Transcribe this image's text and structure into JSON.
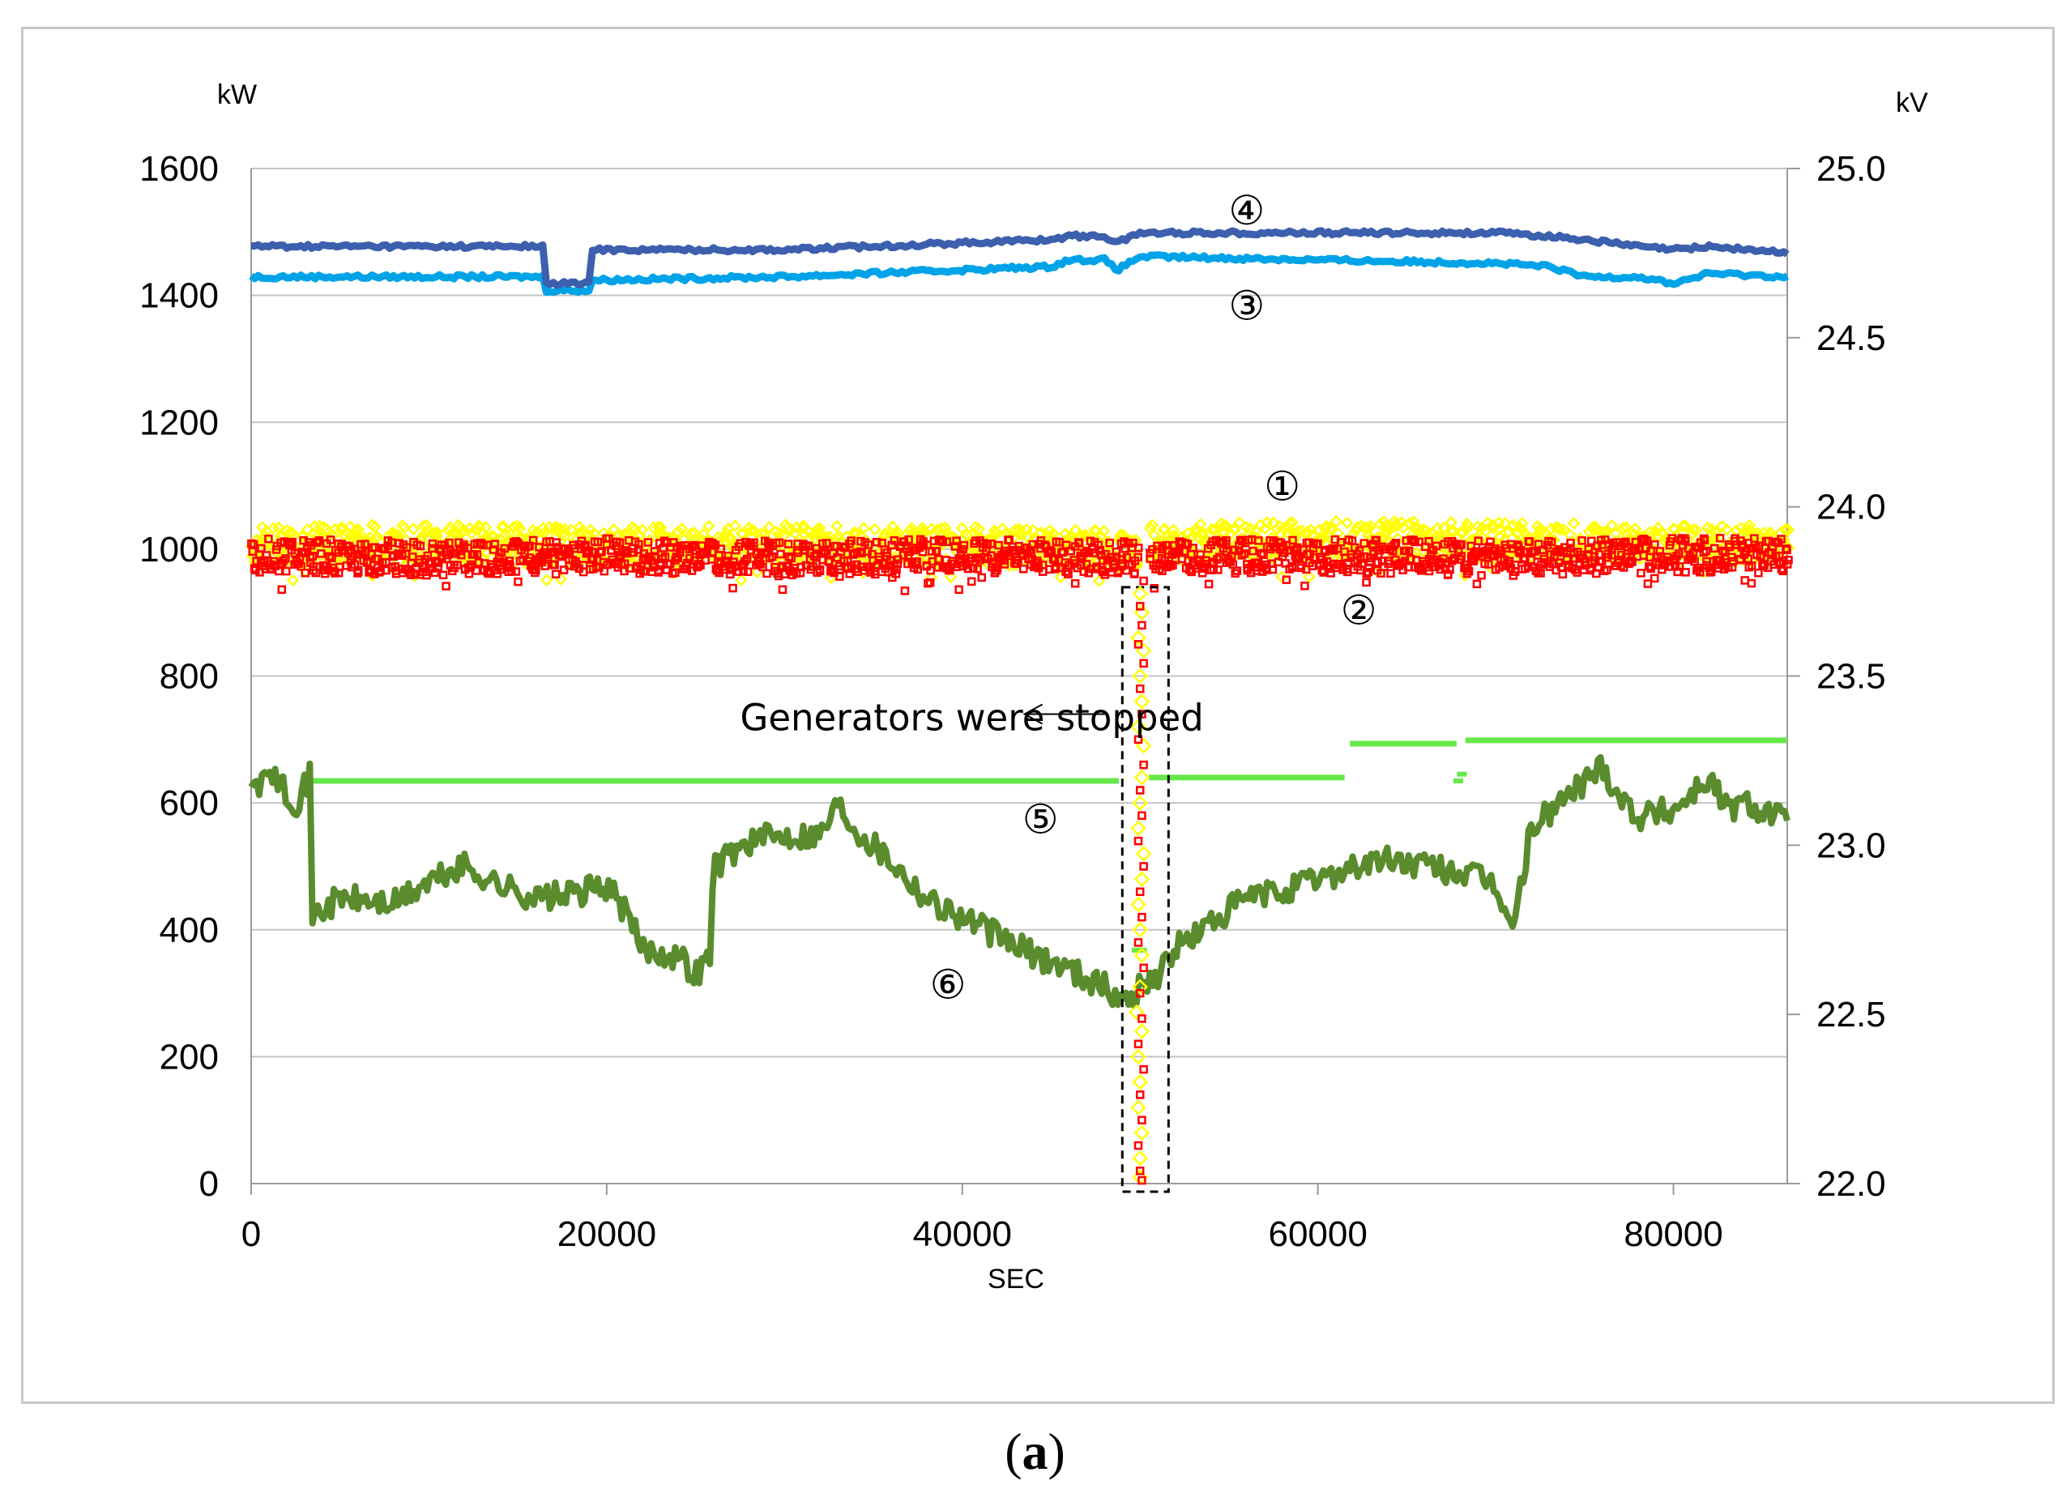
{
  "chart_data": {
    "type": "scatter",
    "title": "",
    "xlabel": "SEC",
    "ylabel_left": "kW",
    "ylabel_right": "kV",
    "xlim": [
      0,
      86400
    ],
    "ylim_left": [
      0,
      1600
    ],
    "ylim_right": [
      22.0,
      25.0
    ],
    "x_ticks": [
      0,
      20000,
      40000,
      60000,
      80000
    ],
    "y_ticks_left": [
      0,
      200,
      400,
      600,
      800,
      1000,
      1200,
      1400,
      1600
    ],
    "y_ticks_right": [
      "22.0",
      "22.5",
      "23.0",
      "23.5",
      "24.0",
      "24.5",
      "25.0"
    ],
    "grid": "horizontal",
    "series": [
      {
        "id": "1",
        "name": "Series 1 (kW, yellow diamonds)",
        "axis": "left",
        "color": "#ffff00",
        "marker": "diamond",
        "points": [
          [
            0,
            1005
          ],
          [
            10000,
            1010
          ],
          [
            20000,
            1005
          ],
          [
            30000,
            1008
          ],
          [
            40000,
            1005
          ],
          [
            49800,
            1000
          ],
          [
            50600,
            1010
          ],
          [
            60000,
            1015
          ],
          [
            70000,
            1012
          ],
          [
            80000,
            1010
          ],
          [
            86400,
            1008
          ]
        ]
      },
      {
        "id": "2",
        "name": "Series 2 (kW, red squares)",
        "axis": "left",
        "color": "#ff0000",
        "marker": "square",
        "points": [
          [
            0,
            990
          ],
          [
            10000,
            985
          ],
          [
            20000,
            990
          ],
          [
            30000,
            985
          ],
          [
            40000,
            990
          ],
          [
            49800,
            985
          ],
          [
            50600,
            985
          ],
          [
            60000,
            990
          ],
          [
            70000,
            985
          ],
          [
            80000,
            990
          ],
          [
            86400,
            990
          ]
        ]
      },
      {
        "id": "3",
        "name": "Series 3 (kV, light blue)",
        "axis": "right",
        "color": "#00a3e8",
        "points": [
          [
            0,
            24.68
          ],
          [
            16400,
            24.68
          ],
          [
            16500,
            24.64
          ],
          [
            19000,
            24.64
          ],
          [
            19100,
            24.67
          ],
          [
            30000,
            24.68
          ],
          [
            40000,
            24.7
          ],
          [
            45000,
            24.71
          ],
          [
            46000,
            24.73
          ],
          [
            48000,
            24.73
          ],
          [
            48700,
            24.7
          ],
          [
            50000,
            24.74
          ],
          [
            60000,
            24.73
          ],
          [
            70000,
            24.72
          ],
          [
            73000,
            24.71
          ],
          [
            75000,
            24.68
          ],
          [
            78000,
            24.68
          ],
          [
            80000,
            24.66
          ],
          [
            82000,
            24.69
          ],
          [
            86400,
            24.68
          ]
        ]
      },
      {
        "id": "4",
        "name": "Series 4 (kV, dark blue)",
        "axis": "right",
        "color": "#3c5fae",
        "points": [
          [
            0,
            24.77
          ],
          [
            16400,
            24.77
          ],
          [
            16500,
            24.66
          ],
          [
            19000,
            24.66
          ],
          [
            19100,
            24.76
          ],
          [
            30000,
            24.76
          ],
          [
            40000,
            24.78
          ],
          [
            45000,
            24.79
          ],
          [
            46000,
            24.8
          ],
          [
            48000,
            24.8
          ],
          [
            48700,
            24.78
          ],
          [
            50000,
            24.81
          ],
          [
            60000,
            24.81
          ],
          [
            70000,
            24.81
          ],
          [
            73000,
            24.8
          ],
          [
            75000,
            24.79
          ],
          [
            78000,
            24.77
          ],
          [
            80000,
            24.76
          ],
          [
            82000,
            24.77
          ],
          [
            86400,
            24.75
          ]
        ]
      },
      {
        "id": "5",
        "name": "Series 5 (kV, bright green)",
        "axis": "right",
        "color": "#66e84a",
        "segments": [
          [
            [
              3300,
              23.19
            ],
            [
              48800,
              23.19
            ]
          ],
          [
            [
              50500,
              23.2
            ],
            [
              61500,
              23.2
            ]
          ],
          [
            [
              61800,
              23.3
            ],
            [
              67800,
              23.3
            ]
          ],
          [
            [
              68300,
              23.31
            ],
            [
              86400,
              23.31
            ]
          ]
        ],
        "scatter": [
          [
            49800,
            22.69
          ],
          [
            50100,
            22.69
          ],
          [
            67900,
            23.19
          ],
          [
            68100,
            23.21
          ]
        ]
      },
      {
        "id": "6",
        "name": "Series 6 (kW, dark green)",
        "axis": "left",
        "color": "#5a8c2e",
        "points": [
          [
            0,
            630
          ],
          [
            1500,
            640
          ],
          [
            2500,
            600
          ],
          [
            3300,
            640
          ],
          [
            3400,
            420
          ],
          [
            5000,
            450
          ],
          [
            8000,
            440
          ],
          [
            10000,
            475
          ],
          [
            12000,
            500
          ],
          [
            14000,
            470
          ],
          [
            16000,
            450
          ],
          [
            18000,
            455
          ],
          [
            20000,
            470
          ],
          [
            21000,
            430
          ],
          [
            22000,
            370
          ],
          [
            24000,
            360
          ],
          [
            25000,
            330
          ],
          [
            25800,
            360
          ],
          [
            26000,
            500
          ],
          [
            28000,
            540
          ],
          [
            30000,
            550
          ],
          [
            32000,
            550
          ],
          [
            33000,
            600
          ],
          [
            34000,
            560
          ],
          [
            36000,
            510
          ],
          [
            38000,
            450
          ],
          [
            40000,
            420
          ],
          [
            42000,
            390
          ],
          [
            44000,
            360
          ],
          [
            46000,
            340
          ],
          [
            48000,
            310
          ],
          [
            49000,
            285
          ],
          [
            50000,
            310
          ],
          [
            51000,
            330
          ],
          [
            52000,
            370
          ],
          [
            54000,
            410
          ],
          [
            56000,
            450
          ],
          [
            58000,
            460
          ],
          [
            60000,
            480
          ],
          [
            62000,
            500
          ],
          [
            64000,
            510
          ],
          [
            66000,
            500
          ],
          [
            68000,
            490
          ],
          [
            70000,
            470
          ],
          [
            71000,
            400
          ],
          [
            72000,
            560
          ],
          [
            74000,
            610
          ],
          [
            76000,
            660
          ],
          [
            77000,
            610
          ],
          [
            78000,
            580
          ],
          [
            80000,
            590
          ],
          [
            82000,
            640
          ],
          [
            83000,
            590
          ],
          [
            84000,
            600
          ],
          [
            86000,
            580
          ],
          [
            86400,
            560
          ]
        ]
      }
    ],
    "event_box": {
      "x_start": 49000,
      "x_end": 51600,
      "y_bottom": 0,
      "y_top": 940
    },
    "event_points": {
      "yellow": [
        [
          50000,
          930
        ],
        [
          50100,
          900
        ],
        [
          49900,
          860
        ],
        [
          50200,
          840
        ],
        [
          50000,
          800
        ],
        [
          50100,
          760
        ],
        [
          49900,
          720
        ],
        [
          50200,
          690
        ],
        [
          50100,
          640
        ],
        [
          50000,
          600
        ],
        [
          49900,
          560
        ],
        [
          50200,
          520
        ],
        [
          50100,
          480
        ],
        [
          49900,
          440
        ],
        [
          50000,
          400
        ],
        [
          50100,
          360
        ],
        [
          50000,
          310
        ],
        [
          49800,
          270
        ],
        [
          50100,
          240
        ],
        [
          49900,
          200
        ],
        [
          50000,
          160
        ],
        [
          49900,
          120
        ],
        [
          50100,
          80
        ],
        [
          50000,
          40
        ],
        [
          50000,
          10
        ]
      ],
      "red": [
        [
          50200,
          950
        ],
        [
          50000,
          910
        ],
        [
          50100,
          880
        ],
        [
          49900,
          850
        ],
        [
          50200,
          820
        ],
        [
          50000,
          780
        ],
        [
          50100,
          740
        ],
        [
          49900,
          700
        ],
        [
          50200,
          660
        ],
        [
          50000,
          620
        ],
        [
          50100,
          580
        ],
        [
          49900,
          540
        ],
        [
          50200,
          500
        ],
        [
          50000,
          460
        ],
        [
          50100,
          420
        ],
        [
          49900,
          380
        ],
        [
          50200,
          340
        ],
        [
          50000,
          300
        ],
        [
          50100,
          260
        ],
        [
          49900,
          220
        ],
        [
          50200,
          180
        ],
        [
          50000,
          140
        ],
        [
          50100,
          100
        ],
        [
          49900,
          60
        ],
        [
          50000,
          20
        ],
        [
          50100,
          5
        ]
      ]
    },
    "annotations": [
      {
        "label": "①",
        "series": "1",
        "x": 58000,
        "y": 1100
      },
      {
        "label": "②",
        "series": "2",
        "x": 62300,
        "y": 905
      },
      {
        "label": "③",
        "series": "3",
        "x": 56000,
        "y": 1385
      },
      {
        "label": "④",
        "series": "4",
        "x": 56000,
        "y": 1535
      },
      {
        "label": "⑤",
        "series": "5",
        "x": 44400,
        "y": 575
      },
      {
        "label": "⑥",
        "series": "6",
        "x": 39200,
        "y": 315
      }
    ],
    "note": {
      "text": "Generators were stopped",
      "x": 27500,
      "y": 735,
      "arrow_from_x": 48000,
      "arrow_to_x": 43500,
      "arrow_y": 740
    }
  },
  "caption": {
    "open": "(",
    "letter": "a",
    "close": ")"
  }
}
